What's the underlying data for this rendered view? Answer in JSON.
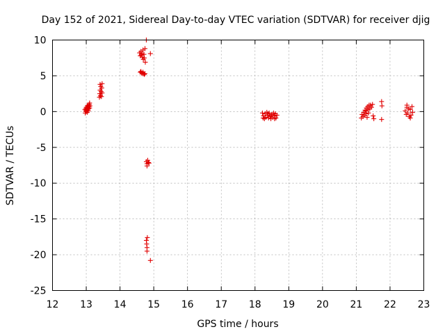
{
  "chart_data": {
    "type": "scatter",
    "title": "Day 152 of 2021, Sidereal Day-to-day VTEC variation (SDTVAR) for receiver djig",
    "xlabel": "GPS time / hours",
    "ylabel": "SDTVAR / TECUs",
    "xlim": [
      12,
      23
    ],
    "ylim": [
      -25,
      10
    ],
    "xticks": [
      12,
      13,
      14,
      15,
      16,
      17,
      18,
      19,
      20,
      21,
      22,
      23
    ],
    "yticks": [
      -25,
      -20,
      -15,
      -10,
      -5,
      0,
      5,
      10
    ],
    "grid": true,
    "marker": "plus",
    "color": "#e00000",
    "series": [
      {
        "name": "SDTVAR",
        "points": [
          [
            12.97,
            -0.2
          ],
          [
            12.98,
            0.1
          ],
          [
            12.99,
            0.4
          ],
          [
            13.0,
            0.0
          ],
          [
            13.0,
            0.6
          ],
          [
            13.01,
            0.2
          ],
          [
            13.02,
            0.5
          ],
          [
            13.03,
            -0.1
          ],
          [
            13.03,
            0.8
          ],
          [
            13.04,
            0.3
          ],
          [
            13.05,
            0.6
          ],
          [
            13.06,
            0.1
          ],
          [
            13.06,
            0.9
          ],
          [
            13.07,
            0.4
          ],
          [
            13.08,
            0.7
          ],
          [
            13.09,
            1.0
          ],
          [
            13.1,
            0.5
          ],
          [
            13.1,
            1.2
          ],
          [
            13.11,
            0.8
          ],
          [
            12.96,
            0.3
          ],
          [
            13.39,
            2.0
          ],
          [
            13.4,
            2.5
          ],
          [
            13.41,
            3.0
          ],
          [
            13.41,
            3.8
          ],
          [
            13.42,
            2.2
          ],
          [
            13.43,
            3.5
          ],
          [
            13.44,
            2.8
          ],
          [
            13.45,
            2.1
          ],
          [
            13.46,
            3.3
          ],
          [
            13.47,
            2.6
          ],
          [
            13.47,
            3.9
          ],
          [
            14.58,
            8.2
          ],
          [
            14.6,
            7.8
          ],
          [
            14.62,
            8.4
          ],
          [
            14.63,
            7.9
          ],
          [
            14.65,
            8.1
          ],
          [
            14.66,
            7.6
          ],
          [
            14.68,
            8.6
          ],
          [
            14.69,
            7.3
          ],
          [
            14.71,
            8.0
          ],
          [
            14.72,
            7.5
          ],
          [
            14.74,
            8.8
          ],
          [
            14.75,
            6.9
          ],
          [
            14.78,
            10.0
          ],
          [
            14.9,
            8.1
          ],
          [
            14.6,
            5.5
          ],
          [
            14.62,
            5.6
          ],
          [
            14.64,
            5.4
          ],
          [
            14.66,
            5.3
          ],
          [
            14.68,
            5.5
          ],
          [
            14.7,
            5.3
          ],
          [
            14.72,
            5.2
          ],
          [
            14.74,
            5.3
          ],
          [
            14.78,
            -7.0
          ],
          [
            14.8,
            -7.3
          ],
          [
            14.82,
            -6.8
          ],
          [
            14.84,
            -7.1
          ],
          [
            14.86,
            -7.2
          ],
          [
            14.8,
            -7.6
          ],
          [
            14.78,
            -18.0
          ],
          [
            14.79,
            -18.5
          ],
          [
            14.8,
            -19.0
          ],
          [
            14.8,
            -19.5
          ],
          [
            14.81,
            -17.6
          ],
          [
            14.9,
            -20.8
          ],
          [
            18.22,
            -0.2
          ],
          [
            18.25,
            -0.6
          ],
          [
            18.28,
            -1.0
          ],
          [
            18.3,
            -0.3
          ],
          [
            18.32,
            -0.8
          ],
          [
            18.35,
            -0.1
          ],
          [
            18.37,
            -0.5
          ],
          [
            18.4,
            -0.9
          ],
          [
            18.42,
            -0.2
          ],
          [
            18.45,
            -0.7
          ],
          [
            18.47,
            -1.0
          ],
          [
            18.5,
            -0.4
          ],
          [
            18.52,
            -0.8
          ],
          [
            18.55,
            -0.2
          ],
          [
            18.57,
            -0.6
          ],
          [
            18.6,
            -0.3
          ],
          [
            18.62,
            -0.9
          ],
          [
            18.65,
            -0.5
          ],
          [
            18.24,
            -0.9
          ],
          [
            18.38,
            -0.3
          ],
          [
            18.48,
            -0.6
          ],
          [
            18.58,
            -1.0
          ],
          [
            21.15,
            -0.9
          ],
          [
            21.17,
            -0.4
          ],
          [
            21.2,
            -0.7
          ],
          [
            21.22,
            -0.1
          ],
          [
            21.24,
            -0.5
          ],
          [
            21.26,
            0.2
          ],
          [
            21.28,
            -0.3
          ],
          [
            21.3,
            0.5
          ],
          [
            21.32,
            -0.8
          ],
          [
            21.34,
            0.7
          ],
          [
            21.36,
            -0.2
          ],
          [
            21.38,
            0.9
          ],
          [
            21.4,
            0.4
          ],
          [
            21.42,
            0.9
          ],
          [
            21.45,
            0.6
          ],
          [
            21.48,
            1.0
          ],
          [
            21.5,
            -0.6
          ],
          [
            21.52,
            -1.0
          ],
          [
            21.3,
            0.1
          ],
          [
            21.35,
            0.3
          ],
          [
            21.75,
            1.4
          ],
          [
            21.76,
            0.8
          ],
          [
            21.75,
            -1.1
          ],
          [
            22.45,
            0.1
          ],
          [
            22.48,
            -0.4
          ],
          [
            22.5,
            0.6
          ],
          [
            22.52,
            -0.2
          ],
          [
            22.55,
            0.4
          ],
          [
            22.57,
            -0.7
          ],
          [
            22.6,
            0.3
          ],
          [
            22.62,
            -0.5
          ],
          [
            22.65,
            0.7
          ],
          [
            22.67,
            -0.1
          ],
          [
            22.5,
            0.9
          ],
          [
            22.6,
            -0.9
          ]
        ]
      }
    ]
  }
}
